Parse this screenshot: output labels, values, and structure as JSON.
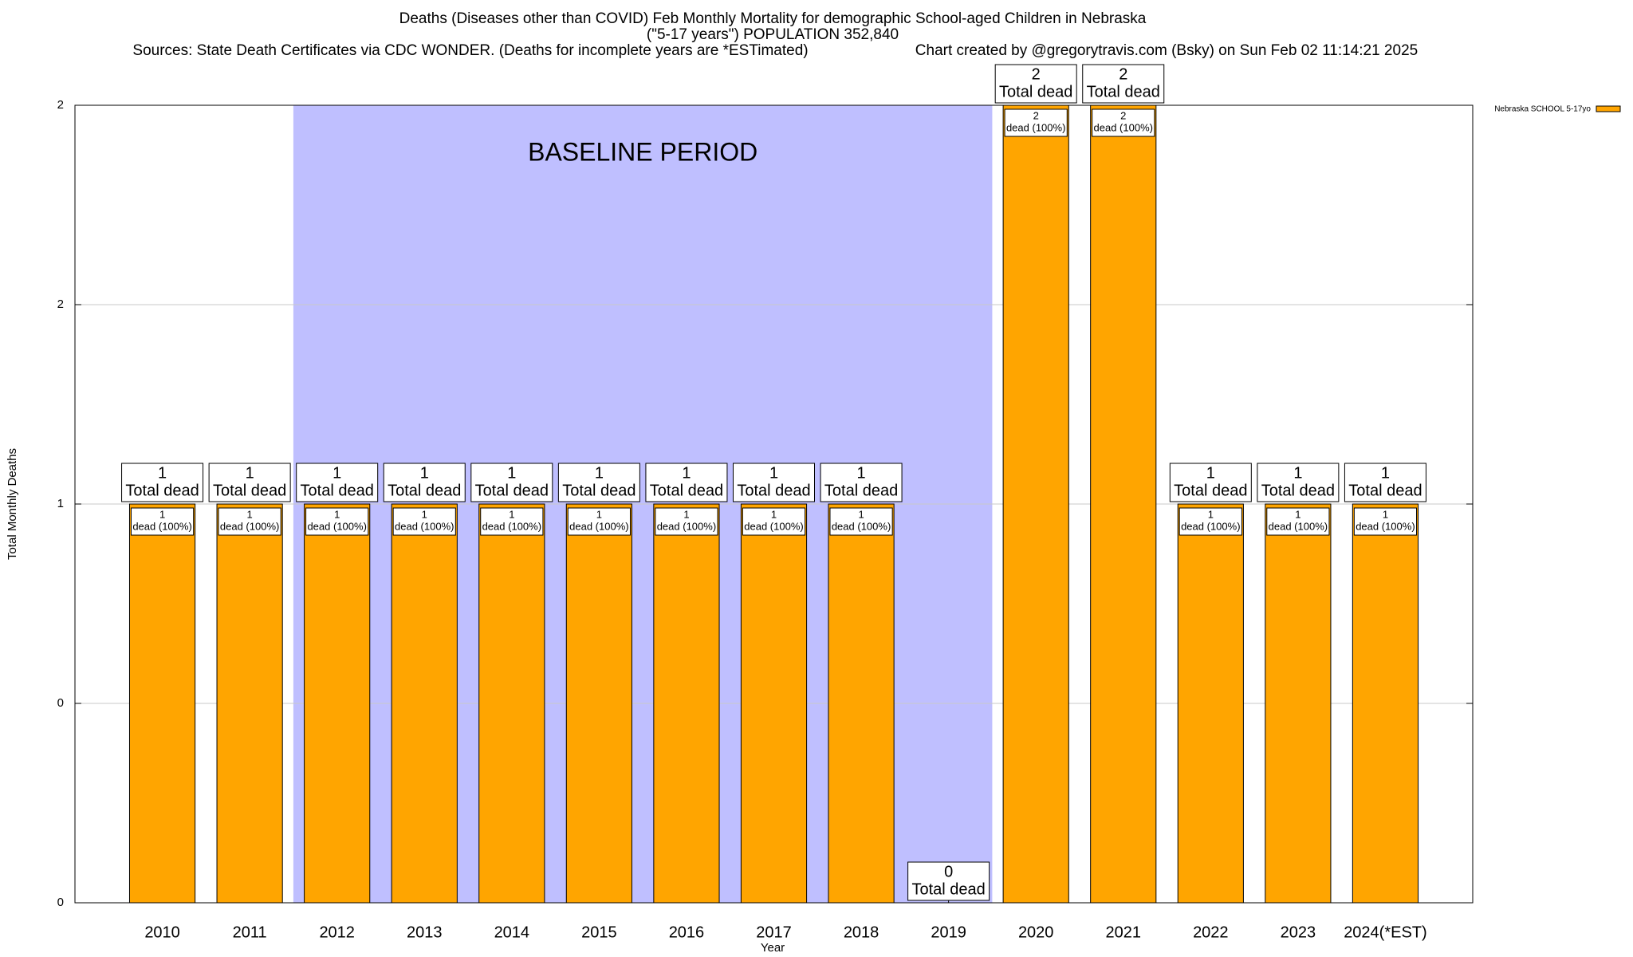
{
  "chart_data": {
    "type": "bar",
    "title": "Deaths (Diseases other than COVID) Feb Monthly Mortality for demographic School-aged Children in Nebraska",
    "subtitle": "(\"5-17 years\") POPULATION 352,840",
    "source": "Sources: State Death Certificates via CDC WONDER. (Deaths for incomplete years are *ESTimated)",
    "credit": "Chart created by @gregorytravis.com (Bsky) on Sun Feb 02 11:14:21 2025",
    "x_label": "Year",
    "y_label": "Total Monthly Deaths",
    "categories": [
      "2010",
      "2011",
      "2012",
      "2013",
      "2014",
      "2015",
      "2016",
      "2017",
      "2018",
      "2019",
      "2020",
      "2021",
      "2022",
      "2023",
      "2024(*EST)"
    ],
    "series": [
      {
        "name": "Nebraska SCHOOL 5-17yo",
        "color": "#ffa500",
        "values": [
          1,
          1,
          1,
          1,
          1,
          1,
          1,
          1,
          1,
          0,
          2,
          2,
          1,
          1,
          1
        ]
      }
    ],
    "total_label": "Total dead",
    "segment_labels": [
      "dead (100%)",
      "dead (100%)",
      "dead (100%)",
      "dead (100%)",
      "dead (100%)",
      "dead (100%)",
      "dead (100%)",
      "dead (100%)",
      "dead (100%)",
      null,
      "dead (100%)",
      "dead (100%)",
      "dead (100%)",
      "dead (100%)",
      "dead (100%)"
    ],
    "annotations": [
      {
        "text": "BASELINE PERIOD",
        "start": "2012",
        "end": "2019",
        "color": "#bfbfff"
      }
    ],
    "ylim": [
      0,
      2
    ],
    "yticks": [
      0,
      {
        "value": 0.5,
        "label": "0"
      },
      1,
      {
        "value": 1.5,
        "label": "2"
      },
      2
    ],
    "grid": true,
    "legend": "top-right"
  }
}
